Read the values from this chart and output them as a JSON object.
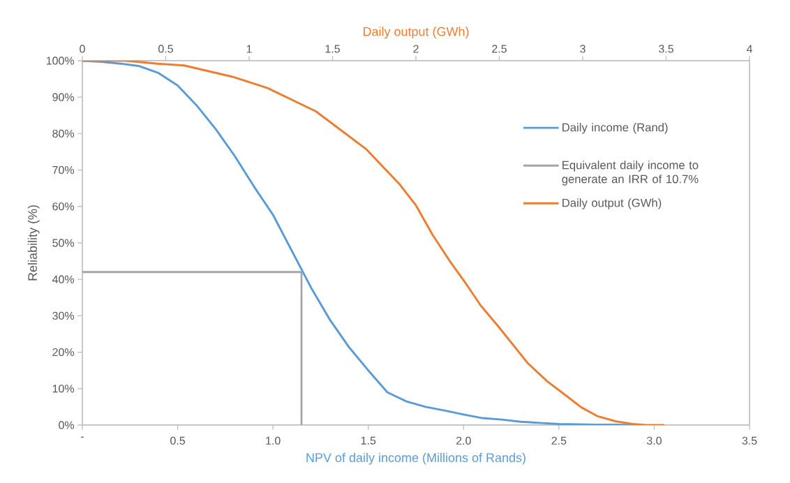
{
  "chart_data": {
    "type": "line",
    "xlabel": "NPV of daily income (Millions of Rands)",
    "x2label": "Daily output (GWh)",
    "ylabel": "Reliability (%)",
    "xlim": [
      0,
      3.5
    ],
    "xticks": [
      {
        "value": 0,
        "label": "-"
      },
      0.5,
      {
        "value": 1,
        "label": "1.0"
      },
      1.5,
      {
        "value": 2,
        "label": "2.0"
      },
      2.5,
      {
        "value": 3,
        "label": "3.0"
      },
      3.5
    ],
    "x2lim": [
      0,
      4
    ],
    "x2ticks": [
      0,
      0.5,
      1,
      1.5,
      2,
      2.5,
      3,
      3.5,
      4
    ],
    "ylim": [
      0,
      100
    ],
    "yticks": [
      {
        "value": 0,
        "label": "0%"
      },
      {
        "value": 10,
        "label": "10%"
      },
      {
        "value": 20,
        "label": "20%"
      },
      {
        "value": 30,
        "label": "30%"
      },
      {
        "value": 40,
        "label": "40%"
      },
      {
        "value": 50,
        "label": "50%"
      },
      {
        "value": 60,
        "label": "60%"
      },
      {
        "value": 70,
        "label": "70%"
      },
      {
        "value": 80,
        "label": "80%"
      },
      {
        "value": 90,
        "label": "90%"
      },
      {
        "value": 100,
        "label": "100%"
      }
    ],
    "grid": false,
    "legend": "right",
    "series": [
      {
        "name": "Daily income (Rand)",
        "color": "#5b9bd5",
        "x": [
          0,
          0.1,
          0.2,
          0.3,
          0.4,
          0.5,
          0.6,
          0.7,
          0.8,
          0.9,
          1.0,
          1.1,
          1.2,
          1.3,
          1.4,
          1.5,
          1.6,
          1.7,
          1.8,
          1.9,
          2.0,
          2.1,
          2.2,
          2.3,
          2.4,
          2.5,
          2.6,
          2.7,
          2.8,
          2.9
        ],
        "values": [
          100,
          99.7,
          99.2,
          98.5,
          96.6,
          93.2,
          87.7,
          81.2,
          73.8,
          65.5,
          57.7,
          47.7,
          37.7,
          28.8,
          21.3,
          15,
          9,
          6.5,
          5,
          4,
          2.9,
          1.9,
          1.5,
          0.9,
          0.6,
          0.3,
          0.2,
          0.1,
          0.1,
          0
        ]
      },
      {
        "name": "Equivalent daily income to generate an IRR of 10.7%",
        "color": "#a5a5a5",
        "x": [
          0,
          1.15,
          1.15
        ],
        "values": [
          42,
          42,
          0
        ]
      },
      {
        "name": "Daily output (GWh)",
        "color": "#ed7d31",
        "axis": "x2",
        "x": [
          0,
          0.26,
          0.45,
          0.61,
          0.9,
          1.11,
          1.4,
          1.7,
          1.9,
          2.0,
          2.1,
          2.2,
          2.3,
          2.39,
          2.49,
          2.67,
          2.79,
          2.9,
          2.99,
          3.09,
          3.2,
          3.3,
          3.38,
          3.49
        ],
        "values": [
          100,
          100,
          99.2,
          98.7,
          95.6,
          92.5,
          86.1,
          75.8,
          66.2,
          60.3,
          52.2,
          45.2,
          38.8,
          32.7,
          27.3,
          17,
          11.9,
          8.1,
          4.9,
          2.4,
          1,
          0.3,
          0,
          0
        ]
      }
    ]
  }
}
